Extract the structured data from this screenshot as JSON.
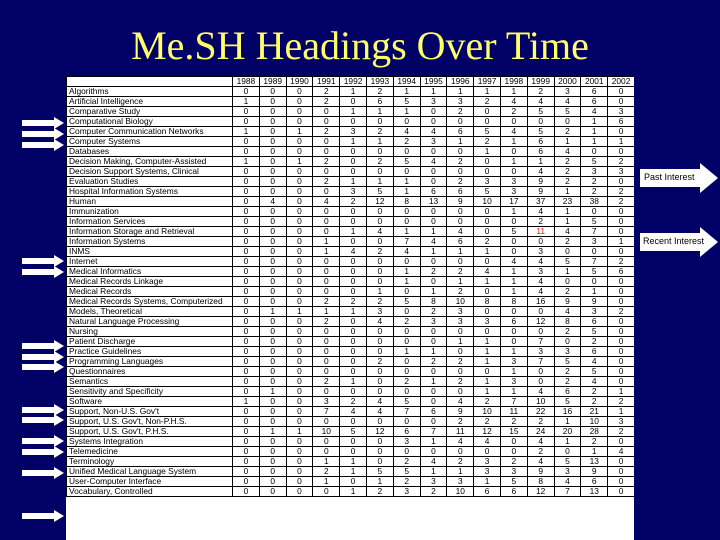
{
  "slide": {
    "title": "Me.SH Headings Over Time",
    "past_label": "Past Interest",
    "recent_label": "Recent Interest"
  },
  "table": {
    "years": [
      "1988",
      "1989",
      "1990",
      "1991",
      "1992",
      "1993",
      "1994",
      "1995",
      "1996",
      "1997",
      "1998",
      "1999",
      "2000",
      "2001",
      "2002"
    ],
    "rows": [
      {
        "name": "Algorithms",
        "values": [
          "0",
          "0",
          "0",
          "2",
          "1",
          "2",
          "1",
          "1",
          "1",
          "1",
          "1",
          "2",
          "3",
          "6",
          "0"
        ],
        "arrow": false
      },
      {
        "name": "Artificial Intelligence",
        "values": [
          "1",
          "0",
          "0",
          "2",
          "0",
          "6",
          "5",
          "3",
          "3",
          "2",
          "4",
          "4",
          "4",
          "6",
          "0"
        ],
        "arrow": false
      },
      {
        "name": "Comparative Study",
        "values": [
          "0",
          "0",
          "0",
          "0",
          "1",
          "1",
          "1",
          "0",
          "2",
          "0",
          "2",
          "5",
          "5",
          "4",
          "3"
        ],
        "arrow": false
      },
      {
        "name": "Computational Biology",
        "values": [
          "0",
          "0",
          "0",
          "0",
          "0",
          "0",
          "0",
          "0",
          "0",
          "0",
          "0",
          "0",
          "0",
          "1",
          "6"
        ],
        "arrow": true
      },
      {
        "name": "Computer Communication Networks",
        "values": [
          "1",
          "0",
          "1",
          "2",
          "3",
          "2",
          "4",
          "4",
          "6",
          "5",
          "4",
          "5",
          "2",
          "1",
          "0"
        ],
        "arrow": true
      },
      {
        "name": "Computer Systems",
        "values": [
          "0",
          "0",
          "0",
          "0",
          "1",
          "1",
          "2",
          "3",
          "1",
          "2",
          "1",
          "6",
          "1",
          "1",
          "1"
        ],
        "arrow": true
      },
      {
        "name": "Databases",
        "values": [
          "0",
          "0",
          "0",
          "0",
          "0",
          "0",
          "0",
          "0",
          "0",
          "1",
          "0",
          "6",
          "4",
          "0",
          "0"
        ],
        "arrow": false
      },
      {
        "name": "Decision Making, Computer-Assisted",
        "values": [
          "1",
          "0",
          "1",
          "2",
          "0",
          "2",
          "5",
          "4",
          "2",
          "0",
          "1",
          "1",
          "2",
          "5",
          "2"
        ],
        "arrow": false
      },
      {
        "name": "Decision Support Systems, Clinical",
        "values": [
          "0",
          "0",
          "0",
          "0",
          "0",
          "0",
          "0",
          "0",
          "0",
          "0",
          "0",
          "4",
          "2",
          "3",
          "3"
        ],
        "arrow": false
      },
      {
        "name": "Evaluation Studies",
        "values": [
          "0",
          "0",
          "0",
          "2",
          "1",
          "1",
          "1",
          "0",
          "2",
          "3",
          "3",
          "9",
          "2",
          "2",
          "0"
        ],
        "arrow": false
      },
      {
        "name": "Hospital Information Systems",
        "values": [
          "0",
          "0",
          "0",
          "0",
          "3",
          "5",
          "1",
          "6",
          "6",
          "5",
          "3",
          "9",
          "1",
          "2",
          "2"
        ],
        "arrow": false
      },
      {
        "name": "Human",
        "values": [
          "0",
          "4",
          "0",
          "4",
          "2",
          "12",
          "8",
          "13",
          "9",
          "10",
          "17",
          "37",
          "23",
          "38",
          "2"
        ],
        "arrow": false
      },
      {
        "name": "Immunization",
        "values": [
          "0",
          "0",
          "0",
          "0",
          "0",
          "0",
          "0",
          "0",
          "0",
          "0",
          "1",
          "4",
          "1",
          "0",
          "0"
        ],
        "arrow": false
      },
      {
        "name": "Information Services",
        "values": [
          "0",
          "0",
          "0",
          "0",
          "0",
          "0",
          "0",
          "0",
          "0",
          "0",
          "0",
          "2",
          "1",
          "5",
          "0"
        ],
        "arrow": false
      },
      {
        "name": "Information Storage and Retrieval",
        "values": [
          "0",
          "0",
          "0",
          "0",
          "1",
          "4",
          "1",
          "1",
          "4",
          "0",
          "5",
          "11",
          "4",
          "7",
          "0"
        ],
        "arrow": false
      },
      {
        "name": "Information Systems",
        "values": [
          "0",
          "0",
          "0",
          "1",
          "0",
          "0",
          "7",
          "4",
          "6",
          "2",
          "0",
          "0",
          "2",
          "3",
          "1"
        ],
        "arrow": false
      },
      {
        "name": "INMS",
        "values": [
          "0",
          "0",
          "0",
          "1",
          "4",
          "2",
          "4",
          "1",
          "1",
          "1",
          "0",
          "3",
          "0",
          "0",
          "0"
        ],
        "arrow": true
      },
      {
        "name": "Internet",
        "values": [
          "0",
          "0",
          "0",
          "0",
          "0",
          "0",
          "0",
          "0",
          "0",
          "0",
          "4",
          "4",
          "5",
          "7",
          "2"
        ],
        "arrow": true
      },
      {
        "name": "Medical Informatics",
        "values": [
          "0",
          "0",
          "0",
          "0",
          "0",
          "0",
          "1",
          "2",
          "2",
          "4",
          "1",
          "3",
          "1",
          "5",
          "6"
        ],
        "arrow": false
      },
      {
        "name": "Medical Records Linkage",
        "values": [
          "0",
          "0",
          "0",
          "0",
          "0",
          "0",
          "1",
          "0",
          "1",
          "1",
          "1",
          "4",
          "0",
          "0",
          "0"
        ],
        "arrow": false
      },
      {
        "name": "Medical Records",
        "values": [
          "0",
          "0",
          "0",
          "0",
          "0",
          "1",
          "0",
          "1",
          "2",
          "0",
          "1",
          "4",
          "2",
          "1",
          "0"
        ],
        "arrow": false
      },
      {
        "name": "Medical Records Systems, Computerized",
        "values": [
          "0",
          "0",
          "0",
          "2",
          "2",
          "2",
          "5",
          "8",
          "10",
          "8",
          "8",
          "16",
          "9",
          "9",
          "0"
        ],
        "arrow": false
      },
      {
        "name": "Models, Theoretical",
        "values": [
          "0",
          "1",
          "1",
          "1",
          "1",
          "3",
          "0",
          "2",
          "3",
          "0",
          "0",
          "0",
          "4",
          "3",
          "2"
        ],
        "arrow": false
      },
      {
        "name": "Natural Language Processing",
        "values": [
          "0",
          "0",
          "0",
          "2",
          "0",
          "4",
          "2",
          "3",
          "3",
          "3",
          "6",
          "12",
          "8",
          "6",
          "0"
        ],
        "arrow": false
      },
      {
        "name": "Nursing",
        "values": [
          "0",
          "0",
          "0",
          "0",
          "0",
          "0",
          "0",
          "0",
          "0",
          "0",
          "0",
          "0",
          "2",
          "5",
          "0"
        ],
        "arrow": true
      },
      {
        "name": "Patient Discharge",
        "values": [
          "0",
          "0",
          "0",
          "0",
          "0",
          "0",
          "0",
          "0",
          "1",
          "1",
          "0",
          "7",
          "0",
          "2",
          "0"
        ],
        "arrow": true
      },
      {
        "name": "Practice Guidelines",
        "values": [
          "0",
          "0",
          "0",
          "0",
          "0",
          "0",
          "1",
          "1",
          "0",
          "1",
          "1",
          "3",
          "3",
          "6",
          "0"
        ],
        "arrow": true
      },
      {
        "name": "Programming Languages",
        "values": [
          "0",
          "0",
          "0",
          "0",
          "0",
          "2",
          "0",
          "2",
          "2",
          "1",
          "3",
          "7",
          "5",
          "4",
          "0"
        ],
        "arrow": false
      },
      {
        "name": "Questionnaires",
        "values": [
          "0",
          "0",
          "0",
          "0",
          "0",
          "0",
          "0",
          "0",
          "0",
          "0",
          "1",
          "0",
          "2",
          "5",
          "0"
        ],
        "arrow": false
      },
      {
        "name": "Semantics",
        "values": [
          "0",
          "0",
          "0",
          "2",
          "1",
          "0",
          "2",
          "1",
          "2",
          "1",
          "3",
          "0",
          "2",
          "4",
          "0"
        ],
        "arrow": false
      },
      {
        "name": "Sensitivity and Specificity",
        "values": [
          "0",
          "1",
          "0",
          "0",
          "0",
          "0",
          "0",
          "0",
          "0",
          "1",
          "1",
          "4",
          "6",
          "2",
          "1"
        ],
        "arrow": true
      },
      {
        "name": "Software",
        "values": [
          "1",
          "0",
          "0",
          "3",
          "2",
          "4",
          "5",
          "0",
          "4",
          "2",
          "7",
          "10",
          "5",
          "2",
          "2"
        ],
        "arrow": true
      },
      {
        "name": "Support, Non-U.S. Gov't",
        "values": [
          "0",
          "0",
          "0",
          "7",
          "4",
          "4",
          "7",
          "6",
          "9",
          "10",
          "11",
          "22",
          "16",
          "21",
          "1"
        ],
        "arrow": false
      },
      {
        "name": "Support, U.S. Gov't, Non-P.H.S.",
        "values": [
          "0",
          "0",
          "0",
          "0",
          "0",
          "0",
          "0",
          "0",
          "2",
          "2",
          "2",
          "2",
          "1",
          "10",
          "3"
        ],
        "arrow": true
      },
      {
        "name": "Support, U.S. Gov't, P.H.S.",
        "values": [
          "0",
          "1",
          "1",
          "10",
          "5",
          "12",
          "6",
          "7",
          "11",
          "12",
          "15",
          "24",
          "20",
          "28",
          "2"
        ],
        "arrow": true
      },
      {
        "name": "Systems Integration",
        "values": [
          "0",
          "0",
          "0",
          "0",
          "0",
          "0",
          "3",
          "1",
          "4",
          "4",
          "0",
          "4",
          "1",
          "2",
          "0"
        ],
        "arrow": false
      },
      {
        "name": "Telemedicine",
        "values": [
          "0",
          "0",
          "0",
          "0",
          "0",
          "0",
          "0",
          "0",
          "0",
          "0",
          "0",
          "2",
          "0",
          "1",
          "4"
        ],
        "arrow": true
      },
      {
        "name": "Terminology",
        "values": [
          "0",
          "0",
          "0",
          "1",
          "1",
          "0",
          "2",
          "4",
          "2",
          "3",
          "2",
          "4",
          "5",
          "13",
          "0"
        ],
        "arrow": false
      },
      {
        "name": "Unified Medical Language System",
        "values": [
          "0",
          "0",
          "0",
          "2",
          "1",
          "5",
          "5",
          "1",
          "1",
          "3",
          "3",
          "9",
          "3",
          "9",
          "0"
        ],
        "arrow": false
      },
      {
        "name": "User-Computer Interface",
        "values": [
          "0",
          "0",
          "0",
          "1",
          "0",
          "1",
          "2",
          "3",
          "3",
          "1",
          "5",
          "8",
          "4",
          "6",
          "0"
        ],
        "arrow": false
      },
      {
        "name": "Vocabulary, Controlled",
        "values": [
          "0",
          "0",
          "0",
          "0",
          "1",
          "2",
          "3",
          "2",
          "10",
          "6",
          "6",
          "12",
          "7",
          "13",
          "0"
        ],
        "arrow": true
      }
    ]
  },
  "colors": {
    "background": "#000066",
    "title": "#ffff66",
    "arrow": "#ffffff",
    "highlight": "#cc2222"
  }
}
